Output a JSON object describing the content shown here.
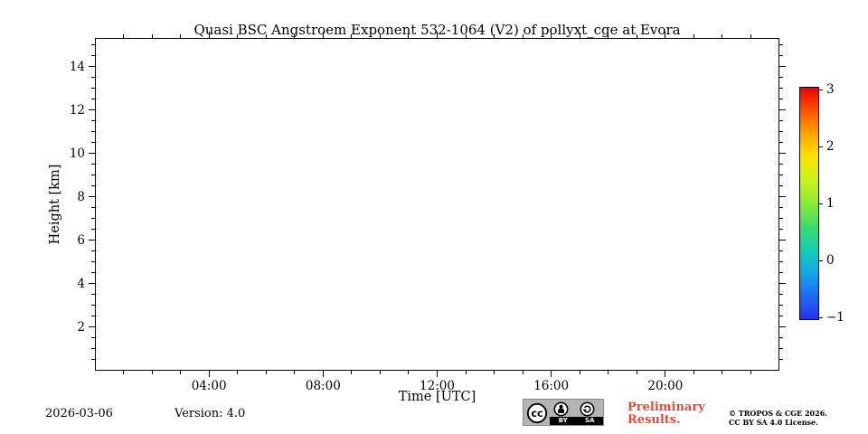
{
  "chart_data": {
    "type": "heatmap",
    "title": "Quasi BSC Angstroem Exponent 532-1064 (V2) of pollyxt_cge at Evora",
    "xlabel": "Time [UTC]",
    "ylabel": "Height [km]",
    "x_range_hours": [
      0,
      24
    ],
    "y_range_km": [
      0,
      15.33
    ],
    "xticks": [
      {
        "value": 4,
        "label": "04:00"
      },
      {
        "value": 8,
        "label": "08:00"
      },
      {
        "value": 12,
        "label": "12:00"
      },
      {
        "value": 16,
        "label": "16:00"
      },
      {
        "value": 20,
        "label": "20:00"
      }
    ],
    "x_minor_step_hours": 1,
    "yticks": [
      {
        "value": 2,
        "label": "2"
      },
      {
        "value": 4,
        "label": "4"
      },
      {
        "value": 6,
        "label": "6"
      },
      {
        "value": 8,
        "label": "8"
      },
      {
        "value": 10,
        "label": "10"
      },
      {
        "value": 12,
        "label": "12"
      },
      {
        "value": 14,
        "label": "14"
      }
    ],
    "y_minor_step_km": 0.5,
    "grid": false,
    "series": [],
    "plot_area_empty": true,
    "colorbar": {
      "vmin": -1,
      "vmax": 3,
      "ticks": [
        {
          "value": 3,
          "label": "3"
        },
        {
          "value": 2,
          "label": "2"
        },
        {
          "value": 1,
          "label": "1"
        },
        {
          "value": 0,
          "label": "0"
        },
        {
          "value": -1,
          "label": "−1"
        }
      ],
      "colormap": [
        {
          "pos": 0.0,
          "color": "#2633ee"
        },
        {
          "pos": 0.1,
          "color": "#1d6bf2"
        },
        {
          "pos": 0.2,
          "color": "#12a8e6"
        },
        {
          "pos": 0.3,
          "color": "#16cfb2"
        },
        {
          "pos": 0.4,
          "color": "#3cdc6c"
        },
        {
          "pos": 0.5,
          "color": "#8ceb34"
        },
        {
          "pos": 0.6,
          "color": "#c8f31c"
        },
        {
          "pos": 0.7,
          "color": "#f8e400"
        },
        {
          "pos": 0.78,
          "color": "#ffb400"
        },
        {
          "pos": 0.88,
          "color": "#ff6400"
        },
        {
          "pos": 1.0,
          "color": "#ef0000"
        }
      ]
    }
  },
  "footer": {
    "date": "2026-03-06",
    "version": "Version: 4.0",
    "preliminary_line1": "Preliminary",
    "preliminary_line2": "Results.",
    "copyright_line1": "© TROPOS & CGE 2026.",
    "copyright_line2": "CC BY SA 4.0 License.",
    "license_badge": {
      "cc_label": "cc",
      "by_label": "BY",
      "sa_label": "SA"
    }
  },
  "colors": {
    "preliminary_red": "#e14b3f",
    "axis": "#000000",
    "background": "#ffffff"
  }
}
